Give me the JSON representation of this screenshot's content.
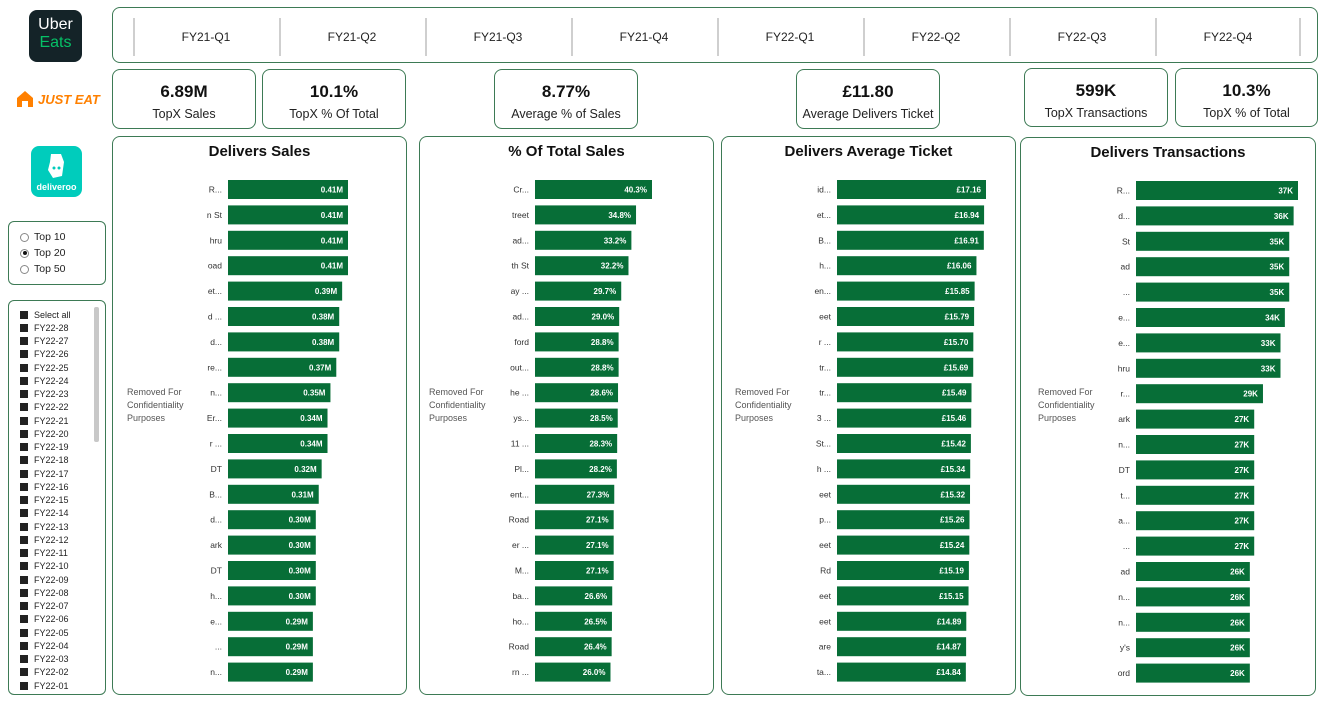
{
  "brands": [
    {
      "name": "uber-eats",
      "lines": [
        "Uber",
        "Eats"
      ],
      "bg": "#142328",
      "fg": "#ffffff",
      "accent": "#06c167"
    },
    {
      "name": "just-eat",
      "text": "JUST EAT",
      "color": "#ff8000"
    },
    {
      "name": "deliveroo",
      "text": "deliveroo",
      "bg": "#00ccbc"
    }
  ],
  "quarters": [
    "FY21-Q1",
    "FY21-Q2",
    "FY21-Q3",
    "FY21-Q4",
    "FY22-Q1",
    "FY22-Q2",
    "FY22-Q3",
    "FY22-Q4"
  ],
  "kpis": [
    {
      "value": "6.89M",
      "label": "TopX Sales"
    },
    {
      "value": "10.1%",
      "label": "TopX % Of Total"
    },
    {
      "value": "8.77%",
      "label": "Average % of Sales"
    },
    {
      "value": "£11.80",
      "label": "Average Delivers Ticket"
    },
    {
      "value": "599K",
      "label": "TopX Transactions"
    },
    {
      "value": "10.3%",
      "label": "TopX % of Total"
    }
  ],
  "topx": {
    "options": [
      "Top 10",
      "Top 20",
      "Top 50"
    ],
    "selected": "Top 20"
  },
  "weeks": {
    "items": [
      "Select all",
      "FY22-28",
      "FY22-27",
      "FY22-26",
      "FY22-25",
      "FY22-24",
      "FY22-23",
      "FY22-22",
      "FY22-21",
      "FY22-20",
      "FY22-19",
      "FY22-18",
      "FY22-17",
      "FY22-16",
      "FY22-15",
      "FY22-14",
      "FY22-13",
      "FY22-12",
      "FY22-11",
      "FY22-10",
      "FY22-09",
      "FY22-08",
      "FY22-07",
      "FY22-06",
      "FY22-05",
      "FY22-04",
      "FY22-03",
      "FY22-02",
      "FY22-01"
    ]
  },
  "confidential_label": [
    "Removed For",
    "Confidentiality",
    "Purposes"
  ],
  "colors": {
    "bar": "#076e37",
    "border": "#3d7a55"
  },
  "chart_data": [
    {
      "type": "bar",
      "title": "Delivers Sales",
      "orientation": "horizontal",
      "categories": [
        "R...",
        "n St",
        "hru",
        "oad",
        "et...",
        "d ...",
        "d...",
        "re...",
        "n...",
        "Er...",
        "r ...",
        "DT",
        "B...",
        "d...",
        "ark",
        "DT",
        "h...",
        "e...",
        "...",
        "n..."
      ],
      "values": [
        0.41,
        0.41,
        0.41,
        0.41,
        0.39,
        0.38,
        0.38,
        0.37,
        0.35,
        0.34,
        0.34,
        0.32,
        0.31,
        0.3,
        0.3,
        0.3,
        0.3,
        0.29,
        0.29,
        0.29
      ],
      "labels": [
        "0.41M",
        "0.41M",
        "0.41M",
        "0.41M",
        "0.39M",
        "0.38M",
        "0.38M",
        "0.37M",
        "0.35M",
        "0.34M",
        "0.34M",
        "0.32M",
        "0.31M",
        "0.30M",
        "0.30M",
        "0.30M",
        "0.30M",
        "0.29M",
        "0.29M",
        "0.29M"
      ]
    },
    {
      "type": "bar",
      "title": "% Of Total Sales",
      "orientation": "horizontal",
      "categories": [
        "Cr...",
        "treet",
        "ad...",
        "th St",
        "ay ...",
        "ad...",
        "ford",
        "out...",
        "he ...",
        "ys...",
        "11 ...",
        "Pl...",
        "ent...",
        "Road",
        "er ...",
        "M...",
        "ba...",
        "ho...",
        "Road",
        "rn ..."
      ],
      "values": [
        40.3,
        34.8,
        33.2,
        32.2,
        29.7,
        29.0,
        28.8,
        28.8,
        28.6,
        28.5,
        28.3,
        28.2,
        27.3,
        27.1,
        27.1,
        27.1,
        26.6,
        26.5,
        26.4,
        26.0
      ],
      "labels": [
        "40.3%",
        "34.8%",
        "33.2%",
        "32.2%",
        "29.7%",
        "29.0%",
        "28.8%",
        "28.8%",
        "28.6%",
        "28.5%",
        "28.3%",
        "28.2%",
        "27.3%",
        "27.1%",
        "27.1%",
        "27.1%",
        "26.6%",
        "26.5%",
        "26.4%",
        "26.0%"
      ]
    },
    {
      "type": "bar",
      "title": "Delivers Average Ticket",
      "orientation": "horizontal",
      "categories": [
        "id...",
        "et...",
        "B...",
        "h...",
        "en...",
        "eet",
        "r ...",
        "tr...",
        "tr...",
        "3 ...",
        "St...",
        "h ...",
        "eet",
        "p...",
        "eet",
        "Rd",
        "eet",
        "eet",
        "are",
        "ta..."
      ],
      "values": [
        17.16,
        16.94,
        16.91,
        16.06,
        15.85,
        15.79,
        15.7,
        15.69,
        15.49,
        15.46,
        15.42,
        15.34,
        15.32,
        15.26,
        15.24,
        15.19,
        15.15,
        14.89,
        14.87,
        14.84
      ],
      "labels": [
        "£17.16",
        "£16.94",
        "£16.91",
        "£16.06",
        "£15.85",
        "£15.79",
        "£15.70",
        "£15.69",
        "£15.49",
        "£15.46",
        "£15.42",
        "£15.34",
        "£15.32",
        "£15.26",
        "£15.24",
        "£15.19",
        "£15.15",
        "£14.89",
        "£14.87",
        "£14.84"
      ]
    },
    {
      "type": "bar",
      "title": "Delivers Transactions",
      "orientation": "horizontal",
      "categories": [
        "R...",
        "d...",
        "St",
        "ad",
        "...",
        "e...",
        "e...",
        "hru",
        "r...",
        "ark",
        "n...",
        "DT",
        "t...",
        "a...",
        "...",
        "ad",
        "n...",
        "n...",
        "y's",
        "ord"
      ],
      "values": [
        37,
        36,
        35,
        35,
        35,
        34,
        33,
        33,
        29,
        27,
        27,
        27,
        27,
        27,
        27,
        26,
        26,
        26,
        26,
        26
      ],
      "labels": [
        "37K",
        "36K",
        "35K",
        "35K",
        "35K",
        "34K",
        "33K",
        "33K",
        "29K",
        "27K",
        "27K",
        "27K",
        "27K",
        "27K",
        "27K",
        "26K",
        "26K",
        "26K",
        "26K",
        "26K"
      ]
    }
  ]
}
